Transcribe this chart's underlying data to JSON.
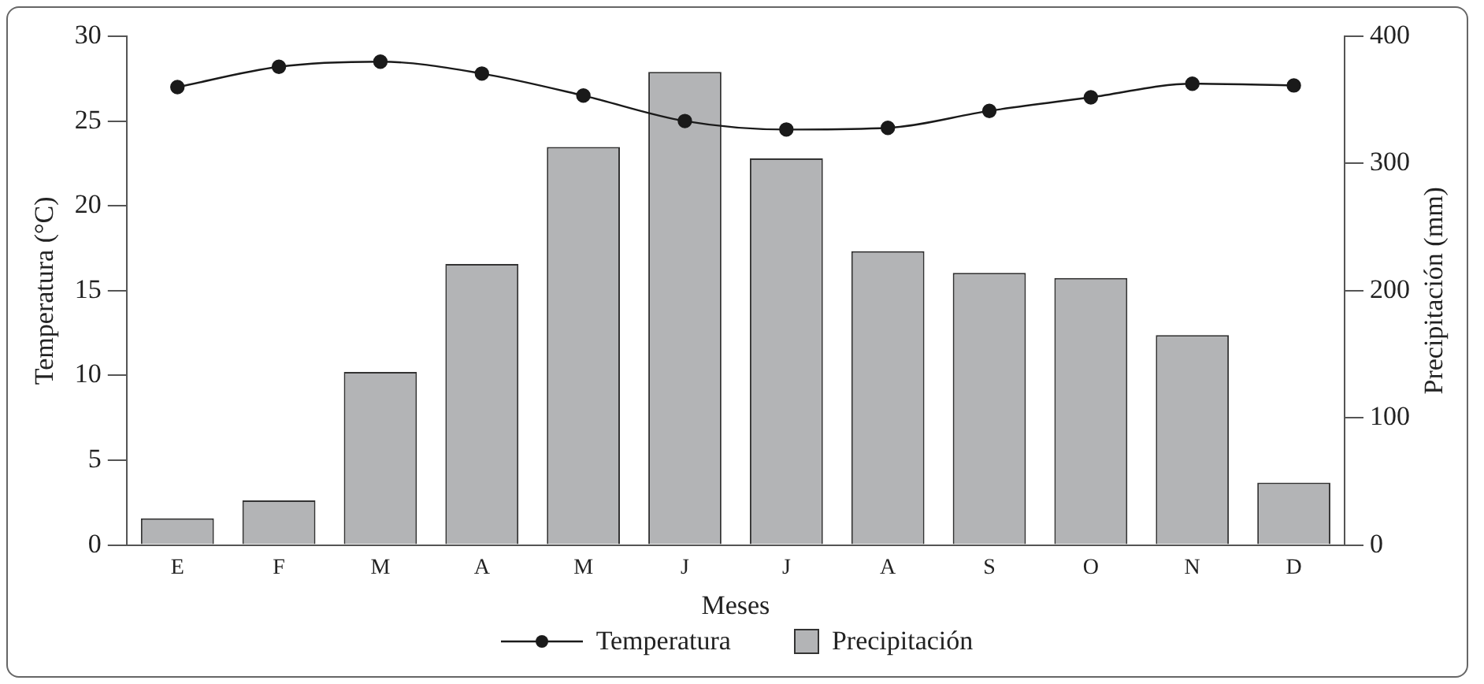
{
  "chart_data": {
    "type": "bar",
    "xlabel": "Meses",
    "ylabel": "Temperatura (°C)",
    "y2label": "Precipitación (mm)",
    "categories": [
      "E",
      "F",
      "M",
      "A",
      "M",
      "J",
      "J",
      "A",
      "S",
      "O",
      "N",
      "D"
    ],
    "series": [
      {
        "name": "Temperatura",
        "type": "line",
        "color": "#1a1a1a",
        "marker": "circle",
        "line_style": "solid",
        "values": [
          27.0,
          28.2,
          28.5,
          27.8,
          26.5,
          25.0,
          24.5,
          24.6,
          25.6,
          26.4,
          27.2,
          27.1
        ]
      },
      {
        "name": "Precipitación",
        "type": "bar",
        "axis": "y2",
        "color": "#b3b4b6",
        "values": [
          21,
          35,
          136,
          221,
          313,
          372,
          304,
          231,
          214,
          210,
          165,
          49
        ]
      }
    ],
    "ylim": [
      0,
      30
    ],
    "yticks": [
      0,
      5,
      10,
      15,
      20,
      25,
      30
    ],
    "y2lim": [
      0,
      400
    ],
    "y2ticks": [
      0,
      100,
      200,
      300,
      400
    ],
    "grid": false,
    "legend": "bottom"
  }
}
